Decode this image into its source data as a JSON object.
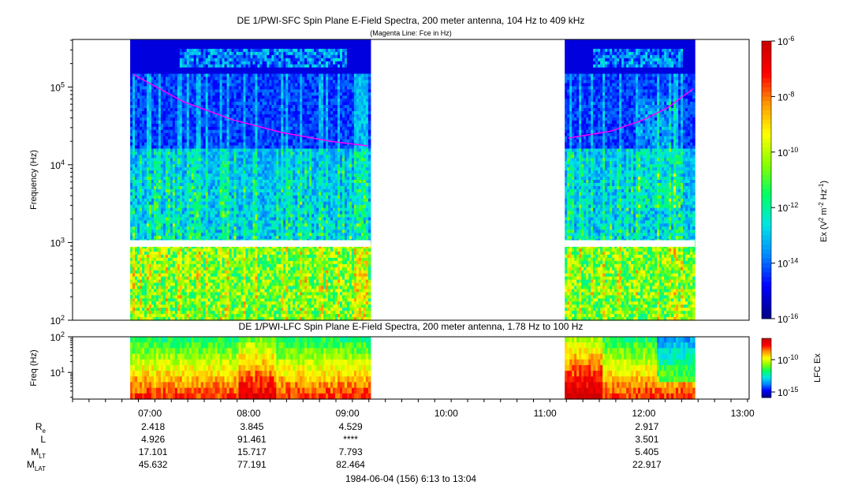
{
  "colors": {
    "background": "#0022aa",
    "spectrum_scale": [
      "#00008b",
      "#0000ff",
      "#0088ff",
      "#00e5e5",
      "#00ff66",
      "#88ff00",
      "#ffff00",
      "#ff9900",
      "#ff0000",
      "#cc0000"
    ],
    "fce_line": "#ff00ff"
  },
  "chart_data": [
    {
      "type": "heatmap",
      "title": "DE 1/PWI-SFC  Spin Plane E-Field Spectra, 200 meter antenna, 104 Hz to 409 kHz",
      "subtitle": "(Magenta Line: Fce in Hz)",
      "ylabel": "Frequency (Hz)",
      "yscale": "log",
      "ylim": [
        100,
        409000
      ],
      "yticks": [
        {
          "value": 100,
          "base": "10",
          "exp": "2"
        },
        {
          "value": 1000,
          "base": "10",
          "exp": "3"
        },
        {
          "value": 10000,
          "base": "10",
          "exp": "4"
        },
        {
          "value": 100000,
          "base": "10",
          "exp": "5"
        }
      ],
      "xlim": [
        "06:13",
        "13:04"
      ],
      "data_segments": [
        {
          "start": "06:48",
          "end": "09:14",
          "gap_band_hz": [
            880,
            1070
          ]
        },
        {
          "start": "11:12",
          "end": "12:31",
          "gap_band_hz": [
            880,
            1070
          ]
        }
      ],
      "fce_line": {
        "name": "Fce in Hz",
        "segments": [
          {
            "t": [
              "06:50",
              "07:20",
              "07:50",
              "08:20",
              "08:50",
              "09:12"
            ],
            "hz": [
              145000,
              65000,
              38000,
              26000,
              20000,
              17500
            ]
          },
          {
            "t": [
              "11:14",
              "11:40",
              "12:00",
              "12:15",
              "12:30"
            ],
            "hz": [
              22000,
              27000,
              38000,
              55000,
              95000
            ]
          }
        ]
      },
      "colorbar": {
        "label_main": "Ex (V",
        "label_mid": " m",
        "label_end": " Hz",
        "label_sup1": "2",
        "label_sup2": "-2",
        "label_sup3": "-1",
        "label_close": ")",
        "scale": "log",
        "range": [
          1e-16,
          1e-06
        ],
        "ticks": [
          {
            "value": 1e-06,
            "base": "10",
            "exp": "-6"
          },
          {
            "value": 1e-08,
            "base": "10",
            "exp": "-8"
          },
          {
            "value": 1e-10,
            "base": "10",
            "exp": "-10"
          },
          {
            "value": 1e-12,
            "base": "10",
            "exp": "-12"
          },
          {
            "value": 1e-14,
            "base": "10",
            "exp": "-14"
          },
          {
            "value": 1e-16,
            "base": "10",
            "exp": "-16"
          }
        ]
      }
    },
    {
      "type": "heatmap",
      "title": "DE 1/PWI-LFC  Spin Plane E-Field Spectra, 200 meter antenna, 1.78 Hz to 100 Hz",
      "ylabel": "Freq (Hz)",
      "yscale": "log",
      "ylim": [
        1.78,
        100
      ],
      "yticks": [
        {
          "value": 10,
          "base": "10",
          "exp": "1"
        },
        {
          "value": 100,
          "base": "10",
          "exp": "2"
        }
      ],
      "xlim": [
        "06:13",
        "13:04"
      ],
      "data_segments": [
        {
          "start": "06:48",
          "end": "09:14"
        },
        {
          "start": "11:12",
          "end": "12:31"
        }
      ],
      "colorbar": {
        "label": "LFC Ex",
        "scale": "log",
        "ticks": [
          {
            "value": 1e-10,
            "base": "10",
            "exp": "-10"
          },
          {
            "value": 1e-15,
            "base": "10",
            "exp": "-15"
          }
        ]
      },
      "xticks": [
        "07:00",
        "08:00",
        "09:00",
        "10:00",
        "11:00",
        "12:00",
        "13:00"
      ]
    }
  ],
  "ephemeris": {
    "rows": [
      {
        "label": "R",
        "sub": "e",
        "values": [
          "2.418",
          "3.845",
          "4.529",
          "",
          "",
          "2.917"
        ]
      },
      {
        "label": "L",
        "sub": "",
        "values": [
          "4.926",
          "91.461",
          "****",
          "",
          "",
          "3.501"
        ]
      },
      {
        "label": "M",
        "sub": "LT",
        "values": [
          "17.101",
          "15.717",
          "7.793",
          "",
          "",
          "5.405"
        ]
      },
      {
        "label": "M",
        "sub": "LAT",
        "values": [
          "45.632",
          "77.191",
          "82.464",
          "",
          "",
          "22.917"
        ]
      }
    ],
    "columns": [
      "07:00",
      "08:00",
      "09:00",
      "10:00",
      "11:00",
      "12:00"
    ]
  },
  "footer": "1984-06-04 (156) 6:13 to 13:04"
}
